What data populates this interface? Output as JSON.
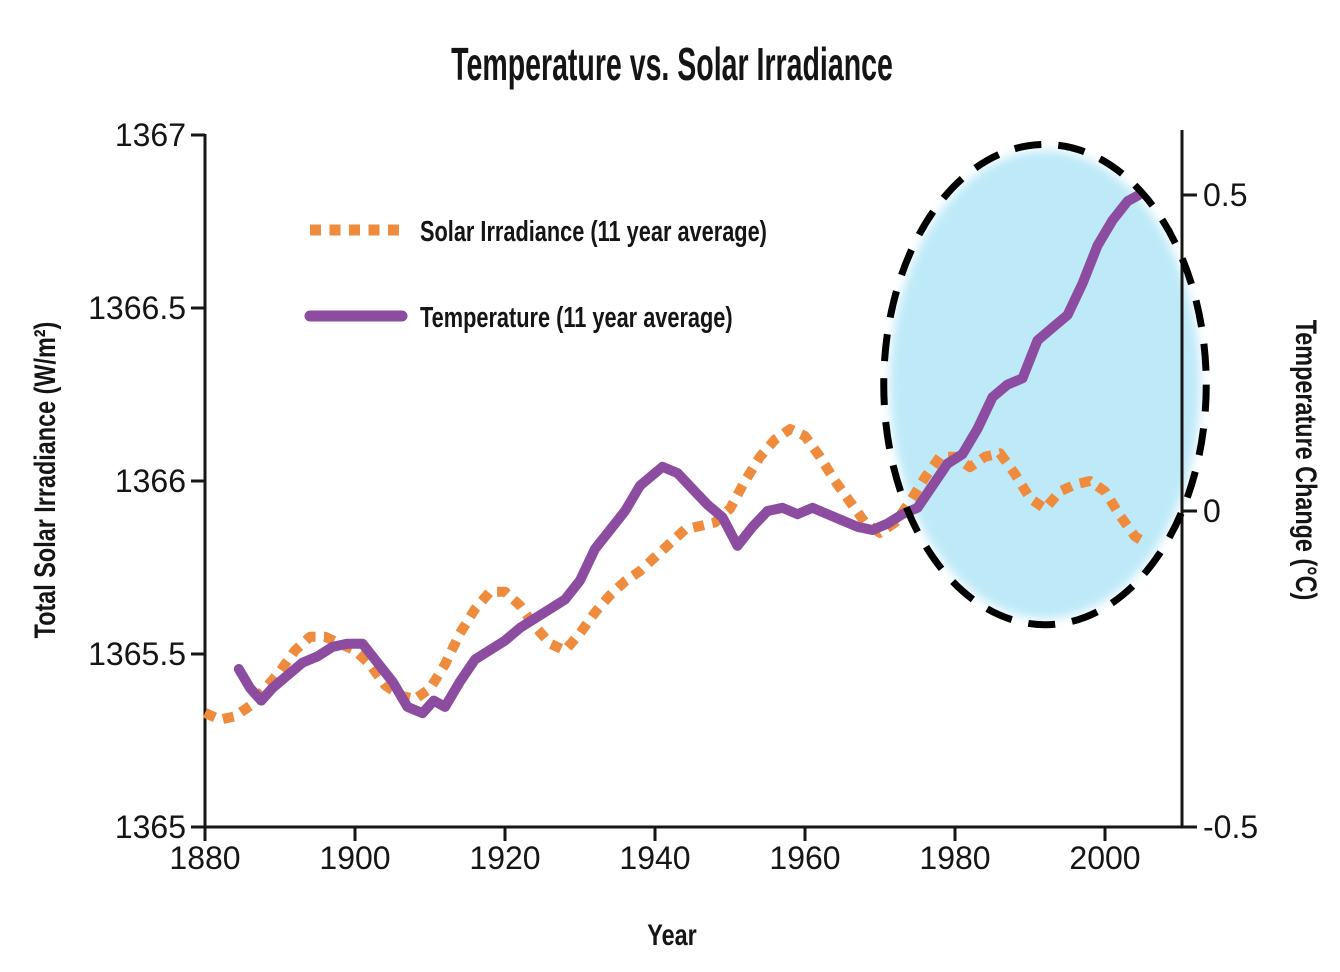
{
  "figure": {
    "title": "Temperature vs. Solar Irradiance",
    "x_axis_label": "Year",
    "left_axis_label": "Total Solar Irradiance (W/m²)",
    "right_axis_label": "Temperature Change (°C)"
  },
  "legend": {
    "items": [
      {
        "label": "Solar Irradiance (11 year average)",
        "color": "#EE8B3D",
        "style": "dotted"
      },
      {
        "label": "Temperature (11 year average)",
        "color": "#8C4DA0",
        "style": "solid"
      }
    ]
  },
  "colors": {
    "axis": "#161616",
    "solar_line": "#EE8B3D",
    "temperature_line": "#8C4DA0",
    "highlight_fill": "#BEE9F8",
    "highlight_outline": "#000000",
    "background": "#FFFFFF"
  },
  "chart_data": {
    "type": "line",
    "title": "Temperature vs. Solar Irradiance",
    "xlabel": "Year",
    "x_range": [
      1880,
      2010
    ],
    "grid": false,
    "x_ticks": [
      {
        "value": 1880,
        "label": "1880"
      },
      {
        "value": 1900,
        "label": "1900"
      },
      {
        "value": 1920,
        "label": "1920"
      },
      {
        "value": 1940,
        "label": "1940"
      },
      {
        "value": 1960,
        "label": "1960"
      },
      {
        "value": 1980,
        "label": "1980"
      },
      {
        "value": 2000,
        "label": "2000"
      }
    ],
    "left_axis": {
      "label": "Total Solar Irradiance (W/m²)",
      "range": [
        1365,
        1367
      ],
      "ticks": [
        {
          "value": 1367,
          "label": "1367"
        },
        {
          "value": 1366.5,
          "label": "1366.5"
        },
        {
          "value": 1366,
          "label": "1366"
        },
        {
          "value": 1365.5,
          "label": "1365.5"
        },
        {
          "value": 1365,
          "label": "1365"
        }
      ]
    },
    "right_axis": {
      "label": "Temperature Change (°C)",
      "range": [
        -0.5,
        0.6
      ],
      "ticks": [
        {
          "value": 0.5,
          "label": "0.5"
        },
        {
          "value": 0,
          "label": "0"
        },
        {
          "value": -0.5,
          "label": "-0.5"
        }
      ]
    },
    "series": [
      {
        "name": "Solar Irradiance (11 year average)",
        "axis": "left",
        "units": "W/m²",
        "style": "dotted",
        "color": "#EE8B3D",
        "points": [
          [
            1880,
            1365.33
          ],
          [
            1882,
            1365.31
          ],
          [
            1884,
            1365.32
          ],
          [
            1886,
            1365.35
          ],
          [
            1888,
            1365.4
          ],
          [
            1890,
            1365.45
          ],
          [
            1892,
            1365.51
          ],
          [
            1894,
            1365.55
          ],
          [
            1896,
            1365.55
          ],
          [
            1898,
            1365.53
          ],
          [
            1900,
            1365.51
          ],
          [
            1902,
            1365.47
          ],
          [
            1904,
            1365.41
          ],
          [
            1906,
            1365.38
          ],
          [
            1908,
            1365.37
          ],
          [
            1910,
            1365.4
          ],
          [
            1912,
            1365.47
          ],
          [
            1914,
            1365.56
          ],
          [
            1916,
            1365.63
          ],
          [
            1918,
            1365.68
          ],
          [
            1920,
            1365.68
          ],
          [
            1922,
            1365.64
          ],
          [
            1924,
            1365.58
          ],
          [
            1926,
            1365.53
          ],
          [
            1928,
            1365.51
          ],
          [
            1930,
            1365.56
          ],
          [
            1932,
            1365.62
          ],
          [
            1934,
            1365.67
          ],
          [
            1936,
            1365.71
          ],
          [
            1938,
            1365.74
          ],
          [
            1940,
            1365.78
          ],
          [
            1942,
            1365.82
          ],
          [
            1944,
            1365.86
          ],
          [
            1946,
            1365.87
          ],
          [
            1948,
            1365.88
          ],
          [
            1950,
            1365.92
          ],
          [
            1952,
            1366.0
          ],
          [
            1954,
            1366.07
          ],
          [
            1956,
            1366.12
          ],
          [
            1958,
            1366.15
          ],
          [
            1960,
            1366.13
          ],
          [
            1962,
            1366.07
          ],
          [
            1964,
            1366.0
          ],
          [
            1966,
            1365.94
          ],
          [
            1968,
            1365.88
          ],
          [
            1970,
            1365.85
          ],
          [
            1972,
            1365.88
          ],
          [
            1974,
            1365.94
          ],
          [
            1976,
            1366.01
          ],
          [
            1978,
            1366.07
          ],
          [
            1980,
            1366.07
          ],
          [
            1982,
            1366.04
          ],
          [
            1984,
            1366.07
          ],
          [
            1986,
            1366.08
          ],
          [
            1988,
            1366.02
          ],
          [
            1990,
            1365.95
          ],
          [
            1992,
            1365.92
          ],
          [
            1994,
            1365.97
          ],
          [
            1996,
            1365.99
          ],
          [
            1998,
            1366.0
          ],
          [
            2000,
            1365.97
          ],
          [
            2002,
            1365.9
          ],
          [
            2004,
            1365.84
          ],
          [
            2005.5,
            1365.82
          ]
        ]
      },
      {
        "name": "Temperature (11 year average)",
        "axis": "right",
        "units": "°C",
        "style": "solid",
        "color": "#8C4DA0",
        "points": [
          [
            1884.5,
            -0.25
          ],
          [
            1886,
            -0.28
          ],
          [
            1887.5,
            -0.3
          ],
          [
            1889,
            -0.28
          ],
          [
            1891,
            -0.26
          ],
          [
            1893,
            -0.24
          ],
          [
            1895,
            -0.23
          ],
          [
            1897,
            -0.215
          ],
          [
            1899,
            -0.21
          ],
          [
            1901,
            -0.21
          ],
          [
            1903,
            -0.24
          ],
          [
            1905,
            -0.27
          ],
          [
            1907,
            -0.31
          ],
          [
            1909,
            -0.32
          ],
          [
            1910.5,
            -0.3
          ],
          [
            1912,
            -0.31
          ],
          [
            1914,
            -0.27
          ],
          [
            1916,
            -0.235
          ],
          [
            1918,
            -0.22
          ],
          [
            1920,
            -0.205
          ],
          [
            1922,
            -0.185
          ],
          [
            1924,
            -0.17
          ],
          [
            1926,
            -0.155
          ],
          [
            1928,
            -0.14
          ],
          [
            1930,
            -0.11
          ],
          [
            1932,
            -0.06
          ],
          [
            1934,
            -0.03
          ],
          [
            1936,
            0.0
          ],
          [
            1938,
            0.04
          ],
          [
            1940,
            0.06
          ],
          [
            1941,
            0.07
          ],
          [
            1943,
            0.06
          ],
          [
            1945,
            0.035
          ],
          [
            1947,
            0.01
          ],
          [
            1949,
            -0.01
          ],
          [
            1951,
            -0.055
          ],
          [
            1953,
            -0.025
          ],
          [
            1955,
            0.0
          ],
          [
            1957,
            0.005
          ],
          [
            1959,
            -0.005
          ],
          [
            1961,
            0.005
          ],
          [
            1963,
            -0.005
          ],
          [
            1965,
            -0.015
          ],
          [
            1967,
            -0.025
          ],
          [
            1969,
            -0.03
          ],
          [
            1971,
            -0.02
          ],
          [
            1973,
            -0.005
          ],
          [
            1975,
            0.005
          ],
          [
            1977,
            0.04
          ],
          [
            1979,
            0.075
          ],
          [
            1981,
            0.09
          ],
          [
            1983,
            0.13
          ],
          [
            1985,
            0.18
          ],
          [
            1987,
            0.2
          ],
          [
            1989,
            0.21
          ],
          [
            1991,
            0.27
          ],
          [
            1993,
            0.29
          ],
          [
            1995,
            0.31
          ],
          [
            1997,
            0.36
          ],
          [
            1999,
            0.42
          ],
          [
            2001,
            0.46
          ],
          [
            2003,
            0.49
          ],
          [
            2004.5,
            0.5
          ]
        ]
      }
    ],
    "highlight_ellipse": {
      "center_year": 1992,
      "center_temp": 0.2,
      "radius_years": 21.5,
      "radius_temp": 0.38,
      "fill": "#BEE9F8",
      "outline": "#000000",
      "outline_style": "dashed"
    }
  }
}
